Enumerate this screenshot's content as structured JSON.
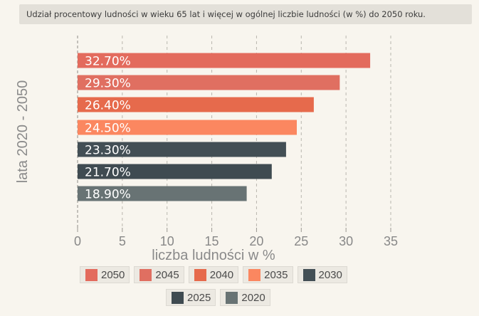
{
  "title": "Udział procentowy ludności w wieku 65 lat i więcej w ogólnej liczbie ludności (w %) do 2050 roku.",
  "chart_data": {
    "type": "bar",
    "orientation": "horizontal",
    "categories": [
      "2050",
      "2045",
      "2040",
      "2035",
      "2030",
      "2025",
      "2020"
    ],
    "values": [
      32.7,
      29.3,
      26.4,
      24.5,
      23.3,
      21.7,
      18.9
    ],
    "labels": [
      "32.70%",
      "29.30%",
      "26.40%",
      "24.50%",
      "23.30%",
      "21.70%",
      "18.90%"
    ],
    "colors": [
      "#e36b5d",
      "#e06f61",
      "#e66a4c",
      "#fb8760",
      "#434f55",
      "#3f4b51",
      "#687374"
    ],
    "xlabel": "liczba ludności w %",
    "ylabel": "lata 2020 - 2050",
    "xlim": [
      0,
      35
    ],
    "xticks": [
      "0",
      "5",
      "10",
      "15",
      "20",
      "25",
      "30",
      "35"
    ],
    "grid": "vertical dashed",
    "legend": {
      "placement": "bottom",
      "items": [
        "2050",
        "2045",
        "2040",
        "2035",
        "2030",
        "2025",
        "2020"
      ]
    }
  }
}
